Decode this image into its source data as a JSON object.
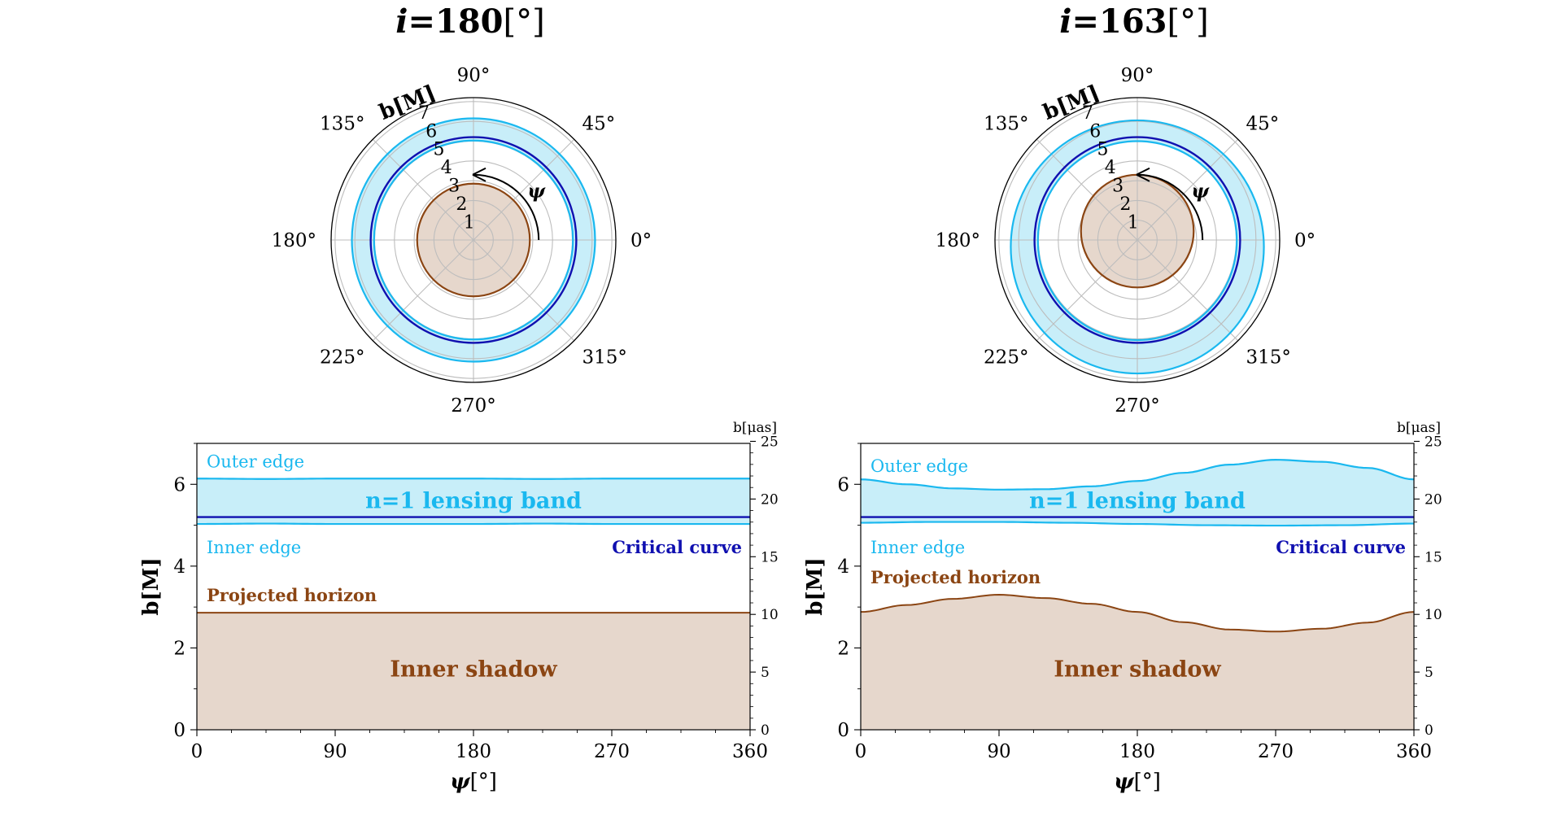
{
  "chart_data": [
    {
      "panel": "left",
      "title_symbol": "i",
      "title_value": "=180",
      "title_unit": "[°]",
      "polar": {
        "type": "polar",
        "angle_labels": [
          "0°",
          "45°",
          "90°",
          "135°",
          "180°",
          "225°",
          "270°",
          "315°"
        ],
        "radial_ticks": [
          "1",
          "2",
          "3",
          "4",
          "5",
          "6",
          "7"
        ],
        "radial_label": "b[M]",
        "rmax": 7.2,
        "psi_label": "ψ",
        "psi_arrow_radius": 3.3,
        "psi_arrow_from_deg": 0,
        "psi_arrow_to_deg": 90,
        "outer_edge_radius": 6.15,
        "inner_edge_radius": 5.03,
        "critical_radius": 5.2,
        "horizon_radius": 2.85
      },
      "cartesian": {
        "type": "line",
        "xlabel_symbol": "ψ",
        "xlabel_unit": "[°]",
        "ylabel": "b[M]",
        "y2label": "b[μas]",
        "xlim": [
          0,
          360
        ],
        "ylim": [
          0,
          7
        ],
        "y2lim": [
          0,
          25
        ],
        "x_ticks": [
          "0",
          "90",
          "180",
          "270",
          "360"
        ],
        "y_ticks": [
          "0",
          "2",
          "4",
          "6"
        ],
        "y2_ticks": [
          "0",
          "5",
          "10",
          "15",
          "20",
          "25"
        ],
        "series": [
          {
            "name": "Outer edge",
            "x": [
              0,
              45,
              90,
              135,
              180,
              225,
              270,
              315,
              360
            ],
            "values": [
              6.14,
              6.13,
              6.14,
              6.14,
              6.14,
              6.13,
              6.14,
              6.14,
              6.14
            ]
          },
          {
            "name": "Inner edge",
            "x": [
              0,
              45,
              90,
              135,
              180,
              225,
              270,
              315,
              360
            ],
            "values": [
              5.03,
              5.04,
              5.03,
              5.03,
              5.03,
              5.04,
              5.03,
              5.03,
              5.03
            ]
          },
          {
            "name": "Critical curve",
            "x": [
              0,
              360
            ],
            "values": [
              5.2,
              5.2
            ]
          },
          {
            "name": "Projected horizon",
            "x": [
              0,
              45,
              90,
              135,
              180,
              225,
              270,
              315,
              360
            ],
            "values": [
              2.86,
              2.86,
              2.86,
              2.86,
              2.86,
              2.86,
              2.86,
              2.86,
              2.86
            ]
          }
        ],
        "annotations": {
          "outer": "Outer edge",
          "inner": "Inner edge",
          "critical": "Critical curve",
          "horizon": "Projected horizon",
          "band": "n=1 lensing band",
          "shadow": "Inner shadow"
        }
      }
    },
    {
      "panel": "right",
      "title_symbol": "i",
      "title_value": "=163",
      "title_unit": "[°]",
      "polar": {
        "type": "polar",
        "angle_labels": [
          "0°",
          "45°",
          "90°",
          "135°",
          "180°",
          "225°",
          "270°",
          "315°"
        ],
        "radial_ticks": [
          "1",
          "2",
          "3",
          "4",
          "5",
          "6",
          "7"
        ],
        "radial_label": "b[M]",
        "rmax": 7.2,
        "psi_label": "ψ",
        "psi_arrow_radius": 3.3,
        "psi_arrow_from_deg": 0,
        "psi_arrow_to_deg": 90,
        "outer_shift_y": -0.35,
        "inner_shift_y": -0.03,
        "critical_radius": 5.2,
        "horizon_shift_y": 0.45
      },
      "cartesian": {
        "type": "line",
        "xlabel_symbol": "ψ",
        "xlabel_unit": "[°]",
        "ylabel": "b[M]",
        "y2label": "b[μas]",
        "xlim": [
          0,
          360
        ],
        "ylim": [
          0,
          7
        ],
        "y2lim": [
          0,
          25
        ],
        "x_ticks": [
          "0",
          "90",
          "180",
          "270",
          "360"
        ],
        "y_ticks": [
          "0",
          "2",
          "4",
          "6"
        ],
        "y2_ticks": [
          "0",
          "5",
          "10",
          "15",
          "20",
          "25"
        ],
        "series": [
          {
            "name": "Outer edge",
            "x": [
              0,
              30,
              60,
              90,
              120,
              150,
              180,
              210,
              240,
              270,
              300,
              330,
              360
            ],
            "values": [
              6.12,
              6.0,
              5.9,
              5.87,
              5.88,
              5.95,
              6.08,
              6.28,
              6.48,
              6.6,
              6.55,
              6.4,
              6.12
            ]
          },
          {
            "name": "Inner edge",
            "x": [
              0,
              45,
              90,
              135,
              180,
              225,
              270,
              315,
              360
            ],
            "values": [
              5.06,
              5.08,
              5.08,
              5.06,
              5.03,
              5.0,
              4.99,
              5.0,
              5.04
            ]
          },
          {
            "name": "Critical curve",
            "x": [
              0,
              360
            ],
            "values": [
              5.2,
              5.2
            ]
          },
          {
            "name": "Projected horizon",
            "x": [
              0,
              30,
              60,
              90,
              120,
              150,
              180,
              210,
              240,
              270,
              300,
              330,
              360
            ],
            "values": [
              2.88,
              3.05,
              3.2,
              3.3,
              3.22,
              3.08,
              2.88,
              2.63,
              2.45,
              2.4,
              2.47,
              2.62,
              2.88
            ]
          }
        ],
        "annotations": {
          "outer": "Outer edge",
          "inner": "Inner edge",
          "critical": "Critical curve",
          "horizon": "Projected horizon",
          "band": "n=1 lensing band",
          "shadow": "Inner shadow"
        }
      }
    }
  ],
  "colors": {
    "outer": "#1ab8ef",
    "band_fill": "#c8eef9",
    "critical": "#1010b0",
    "horizon": "#8b4513",
    "horizon_fill": "#e6d7cc",
    "grid": "#bdbdbd"
  }
}
